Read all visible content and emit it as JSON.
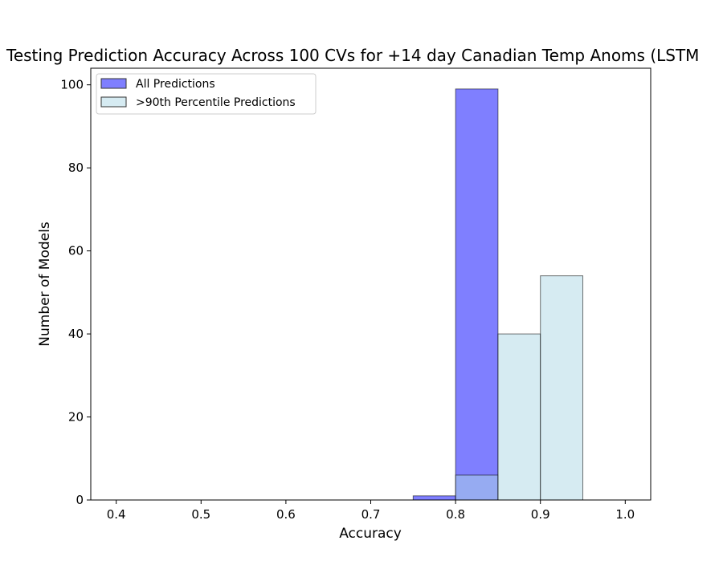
{
  "chart_data": {
    "type": "histogram",
    "title": "Testing Prediction Accuracy Across 100 CVs for +14 day Canadian Temp Anoms (LSTM",
    "xlabel": "Accuracy",
    "ylabel": "Number of Models",
    "xlim": [
      0.37,
      1.03
    ],
    "ylim": [
      0,
      104
    ],
    "x_ticks": [
      0.4,
      0.5,
      0.6,
      0.7,
      0.8,
      0.9,
      1.0
    ],
    "x_tick_labels": [
      "0.4",
      "0.5",
      "0.6",
      "0.7",
      "0.8",
      "0.9",
      "1.0"
    ],
    "y_ticks": [
      0,
      20,
      40,
      60,
      80,
      100
    ],
    "y_tick_labels": [
      "0",
      "20",
      "40",
      "60",
      "80",
      "100"
    ],
    "bins": [
      0.4,
      0.45,
      0.5,
      0.55,
      0.6,
      0.65,
      0.7,
      0.75,
      0.8,
      0.85,
      0.9,
      0.95,
      1.0
    ],
    "grid": false,
    "legend_position": "top-left",
    "series": [
      {
        "name": "All Predictions",
        "color": "#0000ff",
        "alpha": 0.5,
        "counts": [
          0,
          0,
          0,
          0,
          0,
          0,
          0,
          1,
          99,
          0,
          0,
          0
        ]
      },
      {
        "name": ">90th Percentile Predictions",
        "color": "#add8e6",
        "alpha": 0.5,
        "counts": [
          0,
          0,
          0,
          0,
          0,
          0,
          0,
          0,
          6,
          40,
          54,
          0
        ]
      }
    ]
  }
}
